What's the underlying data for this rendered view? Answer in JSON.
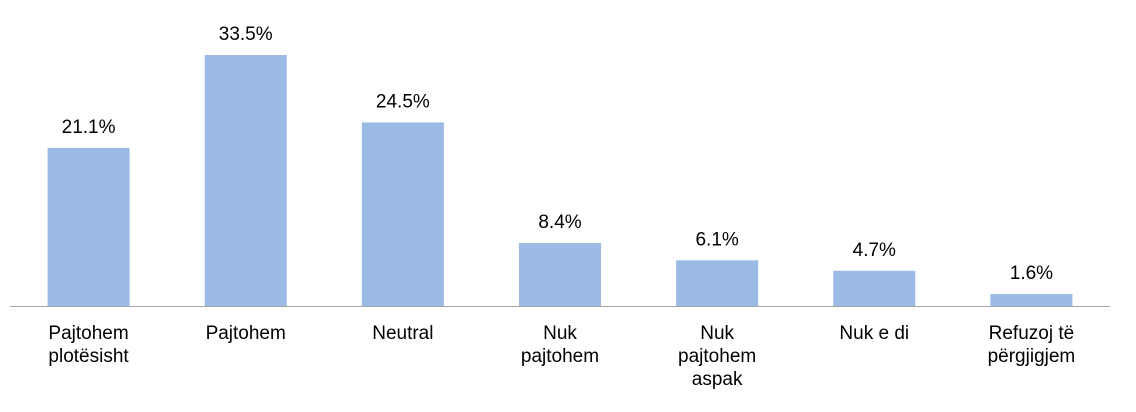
{
  "chart_data": {
    "type": "bar",
    "categories": [
      "Pajtohem plotësisht",
      "Pajtohem",
      "Neutral",
      "Nuk pajtohem",
      "Nuk pajtohem aspak",
      "Nuk e di",
      "Refuzoj të përgjigjem"
    ],
    "values": [
      21.1,
      33.5,
      24.5,
      8.4,
      6.1,
      4.7,
      1.6
    ],
    "value_labels": [
      "21.1%",
      "33.5%",
      "24.5%",
      "8.4%",
      "6.1%",
      "4.7%",
      "1.6%"
    ],
    "color": "#9bbbe4"
  }
}
